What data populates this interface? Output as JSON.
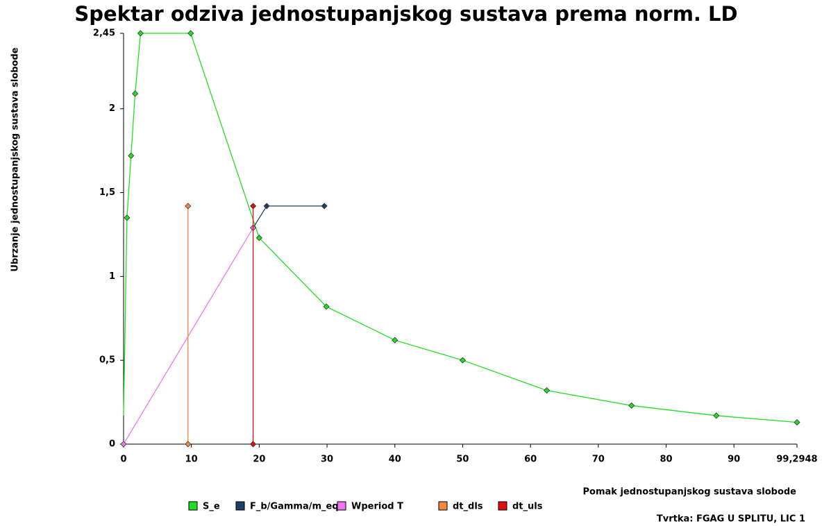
{
  "chart_data": {
    "type": "line",
    "title": "Spektar odziva jednostupanjskog sustava prema norm. LD",
    "x_label": "Pomak jednostupanjskog sustava slobode",
    "y_label": "Ubrzanje jednostupanjskog sustava slobode",
    "footer": "Tvrtka: FGAG U SPLITU, LIC 1",
    "xlim": [
      0,
      99.2948
    ],
    "xticks": [
      0,
      10,
      20,
      30,
      40,
      50,
      60,
      70,
      80,
      90,
      {
        "value": 99.2948,
        "label": "99,2948"
      }
    ],
    "ylim": [
      0,
      2.45
    ],
    "yticks": [
      0,
      {
        "value": 0.5,
        "label": "0,5"
      },
      1,
      {
        "value": 1.5,
        "label": "1,5"
      },
      2,
      {
        "value": 2.45,
        "label": "2,45"
      }
    ],
    "legend": "bottom",
    "series": [
      {
        "name": "S_e",
        "color": "#22dd22",
        "x": [
          0,
          0.5,
          1.1,
          1.7,
          2.5,
          9.9,
          20,
          29.9,
          40,
          50,
          62.4,
          74.9,
          87.4,
          99.2948
        ],
        "values": [
          0.17,
          1.35,
          1.72,
          2.09,
          2.45,
          2.45,
          1.23,
          0.82,
          0.62,
          0.5,
          0.32,
          0.23,
          0.17,
          0.13
        ],
        "markers": [
          false,
          true,
          true,
          true,
          true,
          true,
          true,
          true,
          true,
          true,
          true,
          true,
          true,
          true
        ]
      },
      {
        "name": "F_b/Gamma/m_eq",
        "color": "#1f3f66",
        "x": [
          19.1,
          21.1,
          29.6
        ],
        "values": [
          1.29,
          1.42,
          1.42
        ],
        "markers": [
          false,
          true,
          true
        ]
      },
      {
        "name": "Wperiod T",
        "color": "#ee77ee",
        "x": [
          0,
          19.1
        ],
        "values": [
          0,
          1.29
        ],
        "markers": [
          true,
          true
        ]
      },
      {
        "name": "dt_dls",
        "color": "#ee8844",
        "x": [
          9.5,
          9.5
        ],
        "values": [
          0,
          1.42
        ],
        "markers": [
          true,
          true
        ]
      },
      {
        "name": "dt_uls",
        "color": "#dd1111",
        "x": [
          19.1,
          19.1
        ],
        "values": [
          0,
          1.42
        ],
        "markers": [
          true,
          true
        ]
      }
    ]
  }
}
